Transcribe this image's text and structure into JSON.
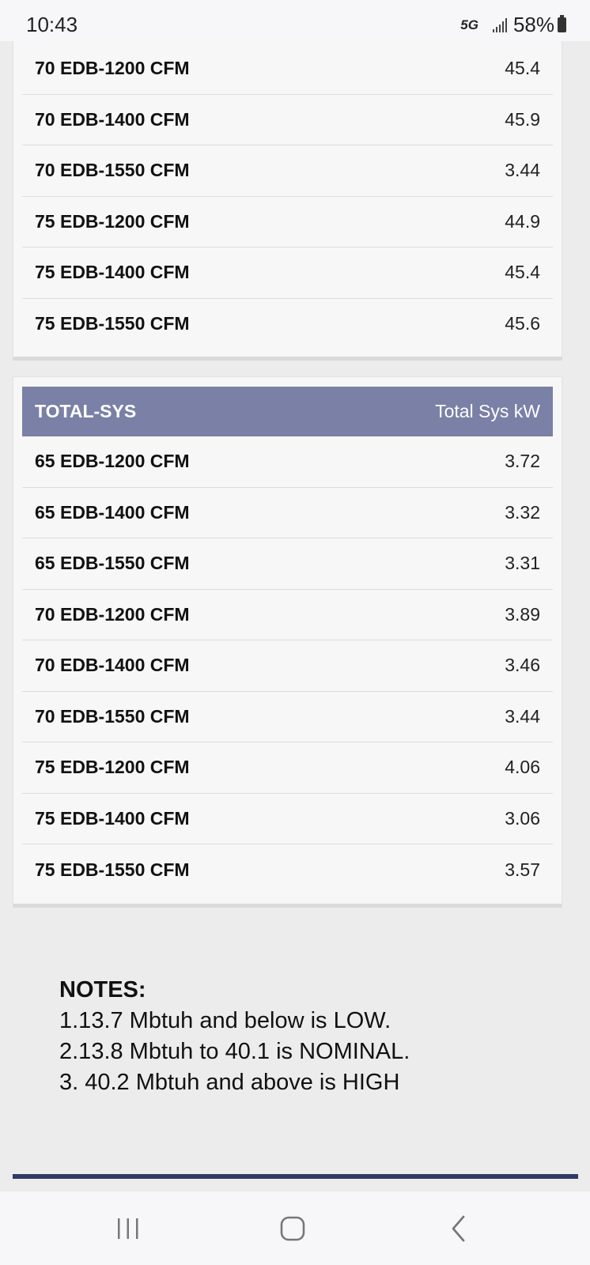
{
  "status_bar": {
    "time": "10:43",
    "network": "5G",
    "battery": "58%"
  },
  "top_table": {
    "rows": [
      {
        "label": "70 EDB-1200 CFM",
        "value": "45.4"
      },
      {
        "label": "70 EDB-1400 CFM",
        "value": "45.9"
      },
      {
        "label": "70 EDB-1550 CFM",
        "value": "3.44"
      },
      {
        "label": "75 EDB-1200 CFM",
        "value": "44.9"
      },
      {
        "label": "75 EDB-1400 CFM",
        "value": "45.4"
      },
      {
        "label": "75 EDB-1550 CFM",
        "value": "45.6"
      }
    ]
  },
  "total_sys_table": {
    "header_left": "TOTAL-SYS",
    "header_right": "Total Sys kW",
    "header_color": "#7a80a6",
    "rows": [
      {
        "label": "65 EDB-1200 CFM",
        "value": "3.72"
      },
      {
        "label": "65 EDB-1400 CFM",
        "value": "3.32"
      },
      {
        "label": "65 EDB-1550 CFM",
        "value": "3.31"
      },
      {
        "label": "70 EDB-1200 CFM",
        "value": "3.89"
      },
      {
        "label": "70 EDB-1400 CFM",
        "value": "3.46"
      },
      {
        "label": "70 EDB-1550 CFM",
        "value": "3.44"
      },
      {
        "label": "75 EDB-1200 CFM",
        "value": "4.06"
      },
      {
        "label": "75 EDB-1400 CFM",
        "value": "3.06"
      },
      {
        "label": "75 EDB-1550 CFM",
        "value": "3.57"
      }
    ]
  },
  "notes": {
    "title": "NOTES:",
    "lines": [
      "1.13.7 Mbtuh and below is LOW.",
      "2.13.8 Mbtuh to 40.1 is NOMINAL.",
      "3. 40.2 Mbtuh and above is HIGH"
    ]
  },
  "navbar": {
    "icons": [
      "recents-icon",
      "home-icon",
      "back-icon"
    ]
  },
  "colors": {
    "footer_line": "#2f3a66",
    "page_background": "#ececec"
  }
}
